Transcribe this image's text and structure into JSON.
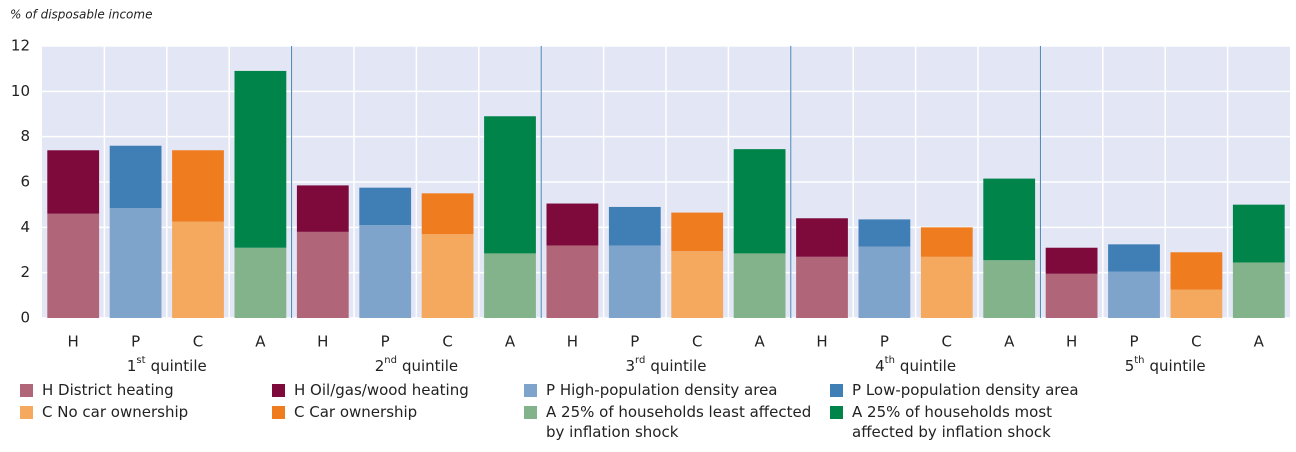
{
  "chart_data": {
    "type": "bar",
    "stacked": true,
    "y_label": "% of disposable income",
    "categories": [
      "H",
      "P",
      "C",
      "A",
      "H",
      "P",
      "C",
      "A",
      "H",
      "P",
      "C",
      "A",
      "H",
      "P",
      "C",
      "A",
      "H",
      "P",
      "C",
      "A"
    ],
    "groups": [
      {
        "number": "1",
        "suffix": "st",
        "label": "quintile"
      },
      {
        "number": "2",
        "suffix": "nd",
        "label": "quintile"
      },
      {
        "number": "3",
        "suffix": "rd",
        "label": "quintile"
      },
      {
        "number": "4",
        "suffix": "th",
        "label": "quintile"
      },
      {
        "number": "5",
        "suffix": "th",
        "label": "quintile"
      }
    ],
    "series": [
      {
        "name": "H District heating",
        "color": "#b06678",
        "values": [
          4.6,
          null,
          null,
          null,
          3.8,
          null,
          null,
          null,
          3.2,
          null,
          null,
          null,
          2.7,
          null,
          null,
          null,
          1.95,
          null,
          null,
          null
        ]
      },
      {
        "name": "H Oil/gas/wood heating",
        "color": "#7d0a3b",
        "values": [
          2.8,
          null,
          null,
          null,
          2.05,
          null,
          null,
          null,
          1.85,
          null,
          null,
          null,
          1.7,
          null,
          null,
          null,
          1.15,
          null,
          null,
          null
        ]
      },
      {
        "name": "P High-population density area",
        "color": "#7fa4cc",
        "values": [
          null,
          4.85,
          null,
          null,
          null,
          4.1,
          null,
          null,
          null,
          3.2,
          null,
          null,
          null,
          3.15,
          null,
          null,
          null,
          2.05,
          null,
          null
        ]
      },
      {
        "name": "P Low-population density area",
        "color": "#3f7fb5",
        "values": [
          null,
          2.75,
          null,
          null,
          null,
          1.65,
          null,
          null,
          null,
          1.7,
          null,
          null,
          null,
          1.2,
          null,
          null,
          null,
          1.2,
          null,
          null
        ]
      },
      {
        "name": "C No car ownership",
        "color": "#f5a95e",
        "values": [
          null,
          null,
          4.25,
          null,
          null,
          null,
          3.7,
          null,
          null,
          null,
          2.95,
          null,
          null,
          null,
          2.7,
          null,
          null,
          null,
          1.25,
          null
        ]
      },
      {
        "name": "C Car ownership",
        "color": "#ef7c1f",
        "values": [
          null,
          null,
          3.15,
          null,
          null,
          null,
          1.8,
          null,
          null,
          null,
          1.7,
          null,
          null,
          null,
          1.3,
          null,
          null,
          null,
          1.65,
          null
        ]
      },
      {
        "name": "A 25% of households least affected by inflation shock",
        "color": "#82b38a",
        "values": [
          null,
          null,
          null,
          3.1,
          null,
          null,
          null,
          2.85,
          null,
          null,
          null,
          2.85,
          null,
          null,
          null,
          2.55,
          null,
          null,
          null,
          2.45
        ]
      },
      {
        "name": "A 25% of households most affected by inflation shock",
        "color": "#00844a",
        "values": [
          null,
          null,
          null,
          7.8,
          null,
          null,
          null,
          6.05,
          null,
          null,
          null,
          4.6,
          null,
          null,
          null,
          3.6,
          null,
          null,
          null,
          2.55
        ]
      }
    ],
    "ylim": [
      0,
      12
    ],
    "yticks": [
      0,
      2,
      4,
      6,
      8,
      10,
      12
    ],
    "grid": true,
    "background": "#e3e6f4",
    "separator_color": "#3f7fb5"
  }
}
